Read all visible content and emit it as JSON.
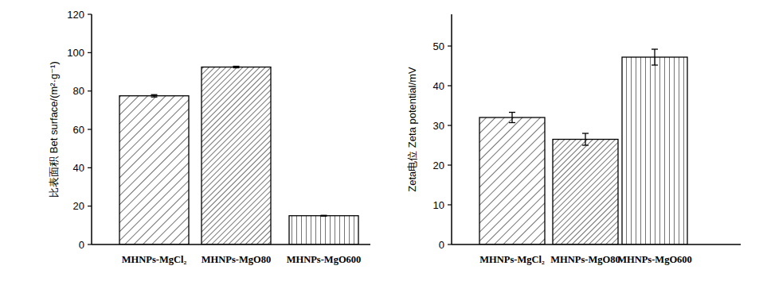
{
  "chart_data": [
    {
      "type": "bar",
      "y_label": "比表面积 Bet surface/(m²·g⁻¹)",
      "categories": [
        "MHNPs-MgCl₂",
        "MHNPs-MgO80",
        "MHNPs-MgO600"
      ],
      "values": [
        77.5,
        92.5,
        15
      ],
      "errors": [
        0.6,
        0.4,
        0.2
      ],
      "color": "#000000",
      "ylim": [
        0,
        120
      ],
      "yticks": [
        0,
        20,
        40,
        60,
        80,
        100,
        120
      ],
      "grid": false
    },
    {
      "type": "bar",
      "y_label": "Zeta电位 Zeta potential/mV",
      "categories": [
        "MHNPs-MgCl₂",
        "MHNPs-MgO80",
        "MHNPs-MgO600"
      ],
      "values": [
        32,
        26.5,
        47.2
      ],
      "errors": [
        1.3,
        1.5,
        2.0
      ],
      "color": "#000000",
      "ylim": [
        0,
        58
      ],
      "yticks": [
        0,
        10,
        20,
        30,
        40,
        50
      ],
      "grid": false
    }
  ]
}
